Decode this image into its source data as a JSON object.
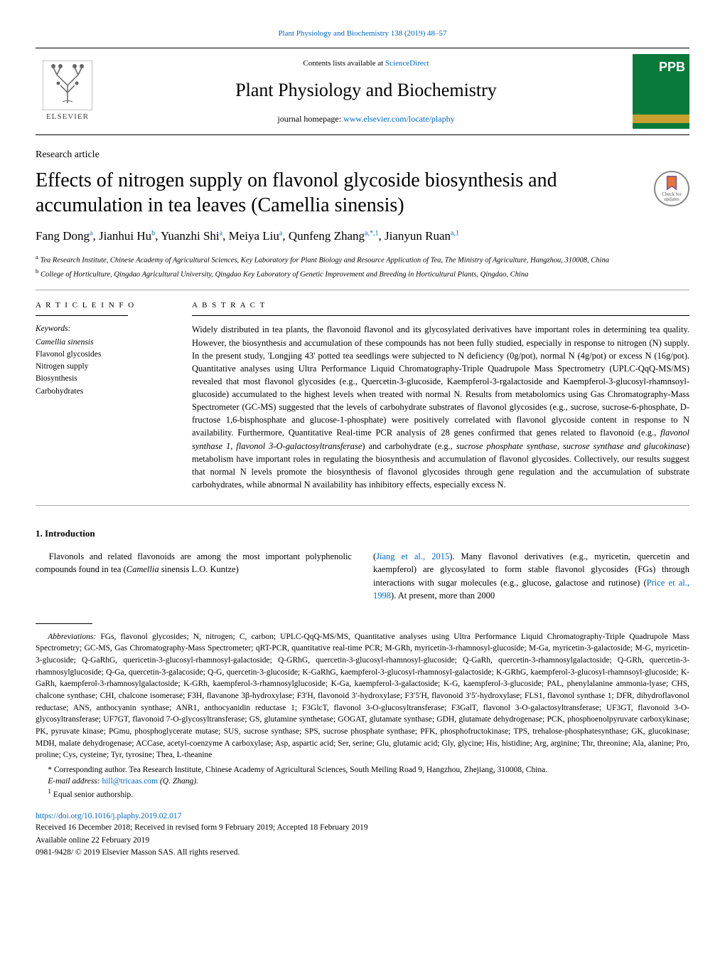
{
  "top_citation": "Plant Physiology and Biochemistry 138 (2019) 48–57",
  "header": {
    "contents_prefix": "Contents lists available at ",
    "contents_link": "ScienceDirect",
    "journal_name": "Plant Physiology and Biochemistry",
    "homepage_prefix": "journal homepage: ",
    "homepage_link": "www.elsevier.com/locate/plaphy",
    "elsevier_label": "ELSEVIER",
    "cover_label": "PPB"
  },
  "badge": {
    "line1": "Check for",
    "line2": "updates"
  },
  "article_type": "Research article",
  "title": "Effects of nitrogen supply on flavonol glycoside biosynthesis and accumulation in tea leaves (Camellia sinensis)",
  "authors_html": "Fang Dong<sup>a</sup>, Jianhui Hu<sup>b</sup>, Yuanzhi Shi<sup>a</sup>, Meiya Liu<sup>a</sup>, Qunfeng Zhang<sup>a,*,1</sup>, Jianyun Ruan<sup>a,1</sup>",
  "affiliations": [
    "a Tea Research Institute, Chinese Academy of Agricultural Sciences, Key Laboratory for Plant Biology and Resource Application of Tea, The Ministry of Agriculture, Hangzhou, 310008, China",
    "b College of Horticulture, Qingdao Agricultural University, Qingdao Key Laboratory of Genetic Improvement and Breeding in Horticultural Plants, Qingdao, China"
  ],
  "info": {
    "header": "A R T I C L E  I N F O",
    "keywords_label": "Keywords:",
    "keywords": [
      "Camellia sinensis",
      "Flavonol glycosides",
      "Nitrogen supply",
      "Biosynthesis",
      "Carbohydrates"
    ]
  },
  "abstract": {
    "header": "A B S T R A C T",
    "text": "Widely distributed in tea plants, the flavonoid flavonol and its glycosylated derivatives have important roles in determining tea quality. However, the biosynthesis and accumulation of these compounds has not been fully studied, especially in response to nitrogen (N) supply. In the present study, 'Longjing 43' potted tea seedlings were subjected to N deficiency (0g/pot), normal N (4g/pot) or excess N (16g/pot). Quantitative analyses using Ultra Performance Liquid Chromatography-Triple Quadrupole Mass Spectrometry (UPLC-QqQ-MS/MS) revealed that most flavonol glycosides (e.g., Quercetin-3-glucoside, Kaempferol-3-rgalactoside and Kaempferol-3-glucosyl-rhamnsoyl-glucoside) accumulated to the highest levels when treated with normal N. Results from metabolomics using Gas Chromatography-Mass Spectrometer (GC-MS) suggested that the levels of carbohydrate substrates of flavonol glycosides (e.g., sucrose, sucrose-6-phosphate, D-fructose 1,6-bisphosphate and glucose-1-phosphate) were positively correlated with flavonol glycoside content in response to N availability. Furthermore, Quantitative Real-time PCR analysis of 28 genes confirmed that genes related to flavonoid (e.g., flavonol synthase 1, flavonol 3-O-galactosyltransferase) and carbohydrate (e.g., sucrose phosphate synthase, sucrose synthase and glucokinase) metabolism have important roles in regulating the biosynthesis and accumulation of flavonol glycosides. Collectively, our results suggest that normal N levels promote the biosynthesis of flavonol glycosides through gene regulation and the accumulation of substrate carbohydrates, while abnormal N availability has inhibitory effects, especially excess N."
  },
  "intro": {
    "heading": "1. Introduction",
    "col1": "Flavonols and related flavonoids are among the most important polyphenolic compounds found in tea (Camellia sinensis L.O. Kuntze)",
    "col2_prefix": "(",
    "col2_link1": "Jiang et al., 2015",
    "col2_mid": "). Many flavonol derivatives (e.g., myricetin, quercetin and kaempferol) are glycosylated to form stable flavonol glycosides (FGs) through interactions with sugar molecules (e.g., glucose, galactose and rutinose) (",
    "col2_link2": "Price et al., 1998",
    "col2_suffix": "). At present, more than 2000"
  },
  "abbrev_label": "Abbreviations:",
  "abbrev_text": " FGs, flavonol glycosides; N, nitrogen; C, carbon; UPLC-QqQ-MS/MS, Quantitative analyses using Ultra Performance Liquid Chromatography-Triple Quadrupole Mass Spectrometry; GC-MS, Gas Chromatography-Mass Spectrometer; qRT-PCR, quantitative real-time PCR; M-GRh, myricetin-3-rhamnosyl-glucoside; M-Ga, myricetin-3-galactoside; M-G, myricetin-3-glucoside; Q-GaRhG, quericetin-3-glucosyl-rhamnosyl-galactoside; Q-GRhG, quercetin-3-glucosyl-rhamnosyl-glucoside; Q-GaRh, quercetin-3-rhamnosylgalactoside; Q-GRh, quercetin-3-rhamnosylglucoside; Q-Ga, quercetin-3-galacoside; Q-G, quercetin-3-glucoside; K-GaRhG, kaempferol-3-glucosyl-rhamnosyl-galactoside; K-GRhG, kaempferol-3-glucosyl-rhamnsoyl-glucoside; K-GaRh, kaempferol-3-rhamnosylgalactoside; K-GRh, kaempferol-3-rhamnosylglucoside; K-Ga, kaempferol-3-galactoside; K-G, kaempferol-3-glucoside; PAL, phenylalanine ammonia-lyase; CHS, chalcone synthase; CHI, chalcone isomerase; F3H, flavanone 3β-hydroxylase; F3′H, flavonoid 3′-hydroxylase; F3′5′H, flavonoid 3′5′-hydroxylase; FLS1, flavonol synthase 1; DFR, dihydroflavonol reductase; ANS, anthocyanin synthase; ANR1, anthocyanidin reductase 1; F3GlcT, flavonol 3-O-glucosyltransferase; F3GalT, flavonol 3-O-galactosyltransferase; UF3GT, flavonoid 3-O-glycosyltransferase; UF7GT, flavonoid 7-O-glycosyltransferase; GS, glutamine synthetase; GOGAT, glutamate synthase; GDH, glutamate dehydrogenase; PCK, phosphoenolpyruvate carboxykinase; PK, pyruvate kinase; PGmu, phosphoglycerate mutase; SUS, sucrose synthase; SPS, sucrose phosphate synthase; PFK, phosphofructokinase; TPS, trehalose-phosphatesynthase; GK, glucokinase; MDH, malate dehydrogenase; ACCase, acetyl-coenzyme A carboxylase; Asp, aspartic acid; Ser, serine; Glu, glutamic acid; Gly, glycine; His, histidine; Arg, arginine; Thr, threonine; Ala, alanine; Pro, proline; Cys, cysteine; Tyr, tyrosine; Thea, L-theanine",
  "corresponding": "* Corresponding author. Tea Research Institute, Chinese Academy of Agricultural Sciences, South Meiling Road 9, Hangzhou, Zhejiang, 310008, China.",
  "email_label": "E-mail address: ",
  "email": "hill@tricaas.com",
  "email_suffix": " (Q. Zhang).",
  "senior": "1 Equal senior authorship.",
  "doi_link": "https://doi.org/10.1016/j.plaphy.2019.02.017",
  "received": "Received 16 December 2018; Received in revised form 9 February 2019; Accepted 18 February 2019",
  "available": "Available online 22 February 2019",
  "copyright": "0981-9428/ © 2019 Elsevier Masson SAS. All rights reserved."
}
